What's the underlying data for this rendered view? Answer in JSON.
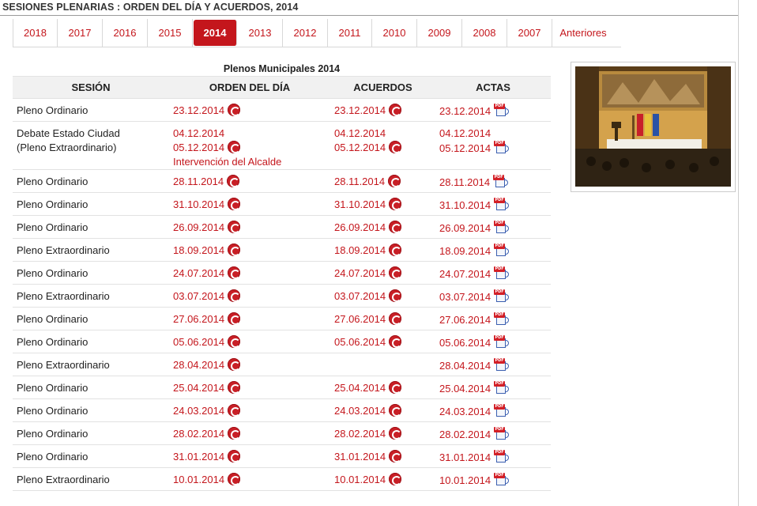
{
  "header": {
    "title": "SESIONES PLENARIAS : ORDEN DEL DÍA Y ACUERDOS, 2014"
  },
  "tabs": [
    {
      "label": "2018",
      "active": false
    },
    {
      "label": "2017",
      "active": false
    },
    {
      "label": "2016",
      "active": false
    },
    {
      "label": "2015",
      "active": false
    },
    {
      "label": "2014",
      "active": true
    },
    {
      "label": "2013",
      "active": false
    },
    {
      "label": "2012",
      "active": false
    },
    {
      "label": "2011",
      "active": false
    },
    {
      "label": "2010",
      "active": false
    },
    {
      "label": "2009",
      "active": false
    },
    {
      "label": "2008",
      "active": false
    },
    {
      "label": "2007",
      "active": false
    },
    {
      "label": "Anteriores",
      "active": false
    }
  ],
  "table": {
    "caption": "Plenos Municipales 2014",
    "headers": [
      "SESIÓN",
      "ORDEN DEL DÍA",
      "ACUERDOS",
      "ACTAS"
    ],
    "rows": [
      {
        "sesion": "Pleno Ordinario",
        "orden": [
          "23.12.2014"
        ],
        "acuerdos": [
          "23.12.2014"
        ],
        "actas": [
          "23.12.2014"
        ]
      },
      {
        "sesion": "Debate Estado Ciudad (Pleno Extraordinario)",
        "orden": [
          "04.12.2014",
          "05.12.2014",
          "Intervención del Alcalde"
        ],
        "acuerdos": [
          "04.12.2014",
          "05.12.2014"
        ],
        "actas": [
          "04.12.2014",
          "05.12.2014"
        ]
      },
      {
        "sesion": "Pleno Ordinario",
        "orden": [
          "28.11.2014"
        ],
        "acuerdos": [
          "28.11.2014"
        ],
        "actas": [
          "28.11.2014"
        ]
      },
      {
        "sesion": "Pleno Ordinario",
        "orden": [
          "31.10.2014"
        ],
        "acuerdos": [
          "31.10.2014"
        ],
        "actas": [
          "31.10.2014"
        ]
      },
      {
        "sesion": "Pleno Ordinario",
        "orden": [
          "26.09.2014"
        ],
        "acuerdos": [
          "26.09.2014"
        ],
        "actas": [
          "26.09.2014"
        ]
      },
      {
        "sesion": "Pleno Extraordinario",
        "orden": [
          "18.09.2014"
        ],
        "acuerdos": [
          "18.09.2014"
        ],
        "actas": [
          "18.09.2014"
        ]
      },
      {
        "sesion": "Pleno Ordinario",
        "orden": [
          "24.07.2014"
        ],
        "acuerdos": [
          "24.07.2014"
        ],
        "actas": [
          "24.07.2014"
        ]
      },
      {
        "sesion": "Pleno Extraordinario",
        "orden": [
          "03.07.2014"
        ],
        "acuerdos": [
          "03.07.2014"
        ],
        "actas": [
          "03.07.2014"
        ]
      },
      {
        "sesion": "Pleno Ordinario",
        "orden": [
          "27.06.2014"
        ],
        "acuerdos": [
          "27.06.2014"
        ],
        "actas": [
          "27.06.2014"
        ]
      },
      {
        "sesion": "Pleno Ordinario",
        "orden": [
          "05.06.2014"
        ],
        "acuerdos": [
          "05.06.2014"
        ],
        "actas": [
          "05.06.2014"
        ]
      },
      {
        "sesion": "Pleno Extraordinario",
        "orden": [
          "28.04.2014"
        ],
        "acuerdos": [],
        "actas": [
          "28.04.2014"
        ]
      },
      {
        "sesion": "Pleno Ordinario",
        "orden": [
          "25.04.2014"
        ],
        "acuerdos": [
          "25.04.2014"
        ],
        "actas": [
          "25.04.2014"
        ]
      },
      {
        "sesion": "Pleno Ordinario",
        "orden": [
          "24.03.2014"
        ],
        "acuerdos": [
          "24.03.2014"
        ],
        "actas": [
          "24.03.2014"
        ]
      },
      {
        "sesion": "Pleno Ordinario",
        "orden": [
          "28.02.2014"
        ],
        "acuerdos": [
          "28.02.2014"
        ],
        "actas": [
          "28.02.2014"
        ]
      },
      {
        "sesion": "Pleno Ordinario",
        "orden": [
          "31.01.2014"
        ],
        "acuerdos": [
          "31.01.2014"
        ],
        "actas": [
          "31.01.2014"
        ]
      },
      {
        "sesion": "Pleno Extraordinario",
        "orden": [
          "10.01.2014"
        ],
        "acuerdos": [
          "10.01.2014"
        ],
        "actas": [
          "10.01.2014"
        ]
      }
    ]
  },
  "icons": {
    "orden": "zaragoza-seal-icon",
    "acuerdos": "zaragoza-seal-icon",
    "actas": "pdf-audio-icon"
  },
  "colors": {
    "accent": "#c4161c"
  },
  "photo": {
    "subject": "municipal-plenary-session-hall"
  }
}
